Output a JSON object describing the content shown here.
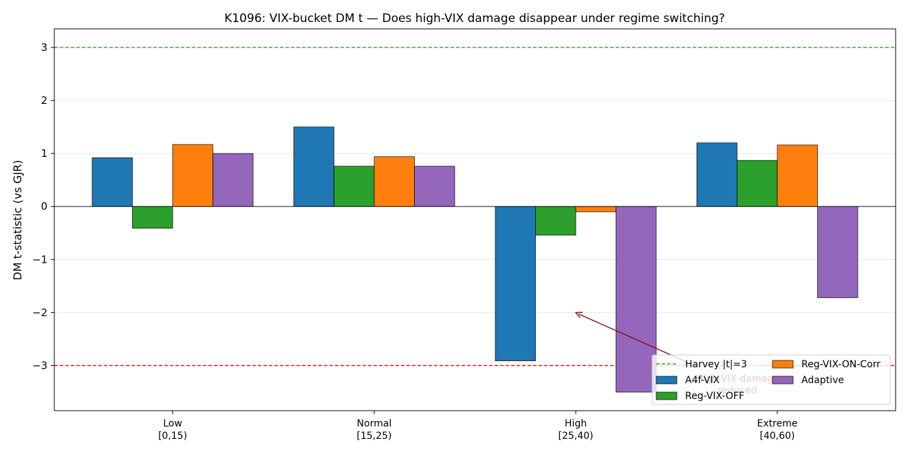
{
  "chart_data": {
    "type": "bar",
    "title": "K1096: VIX-bucket DM t — Does high-VIX damage disappear under regime switching?",
    "xlabel": "",
    "ylabel": "DM t-statistic (vs GJR)",
    "ylim": [
      -3.85,
      3.35
    ],
    "yticks": [
      3,
      2,
      1,
      0,
      -1,
      -2,
      -3
    ],
    "ytick_labels": [
      "3",
      "2",
      "1",
      "0",
      "−1",
      "−2",
      "−3"
    ],
    "grid": true,
    "legend_position": "lower-right",
    "categories": [
      {
        "line1": "Low",
        "line2": "[0,15)"
      },
      {
        "line1": "Normal",
        "line2": "[15,25)"
      },
      {
        "line1": "High",
        "line2": "[25,40)"
      },
      {
        "line1": "Extreme",
        "line2": "[40,60)"
      }
    ],
    "series": [
      {
        "name": "A4f-VIX",
        "color": "#1f77b4",
        "values": [
          0.92,
          1.5,
          -2.91,
          1.2
        ]
      },
      {
        "name": "Reg-VIX-OFF",
        "color": "#2ca02c",
        "values": [
          -0.41,
          0.76,
          -0.54,
          0.87
        ]
      },
      {
        "name": "Reg-VIX-ON-Corr",
        "color": "#ff7f0e",
        "values": [
          1.17,
          0.94,
          -0.1,
          1.16
        ]
      },
      {
        "name": "Adaptive",
        "color": "#9467bd",
        "values": [
          1.0,
          0.76,
          -3.5,
          -1.72
        ]
      }
    ],
    "reference_lines": [
      {
        "y": 3,
        "color": "#2ca02c",
        "label": "Harvey |t|=3"
      },
      {
        "y": -3,
        "color": "#ff0000",
        "label": ""
      }
    ],
    "annotation": {
      "line1": "High-VIX damage",
      "line2": "reduced",
      "arrow_target": {
        "category_index": 2,
        "y": -2.0
      },
      "color": "#800000"
    }
  }
}
